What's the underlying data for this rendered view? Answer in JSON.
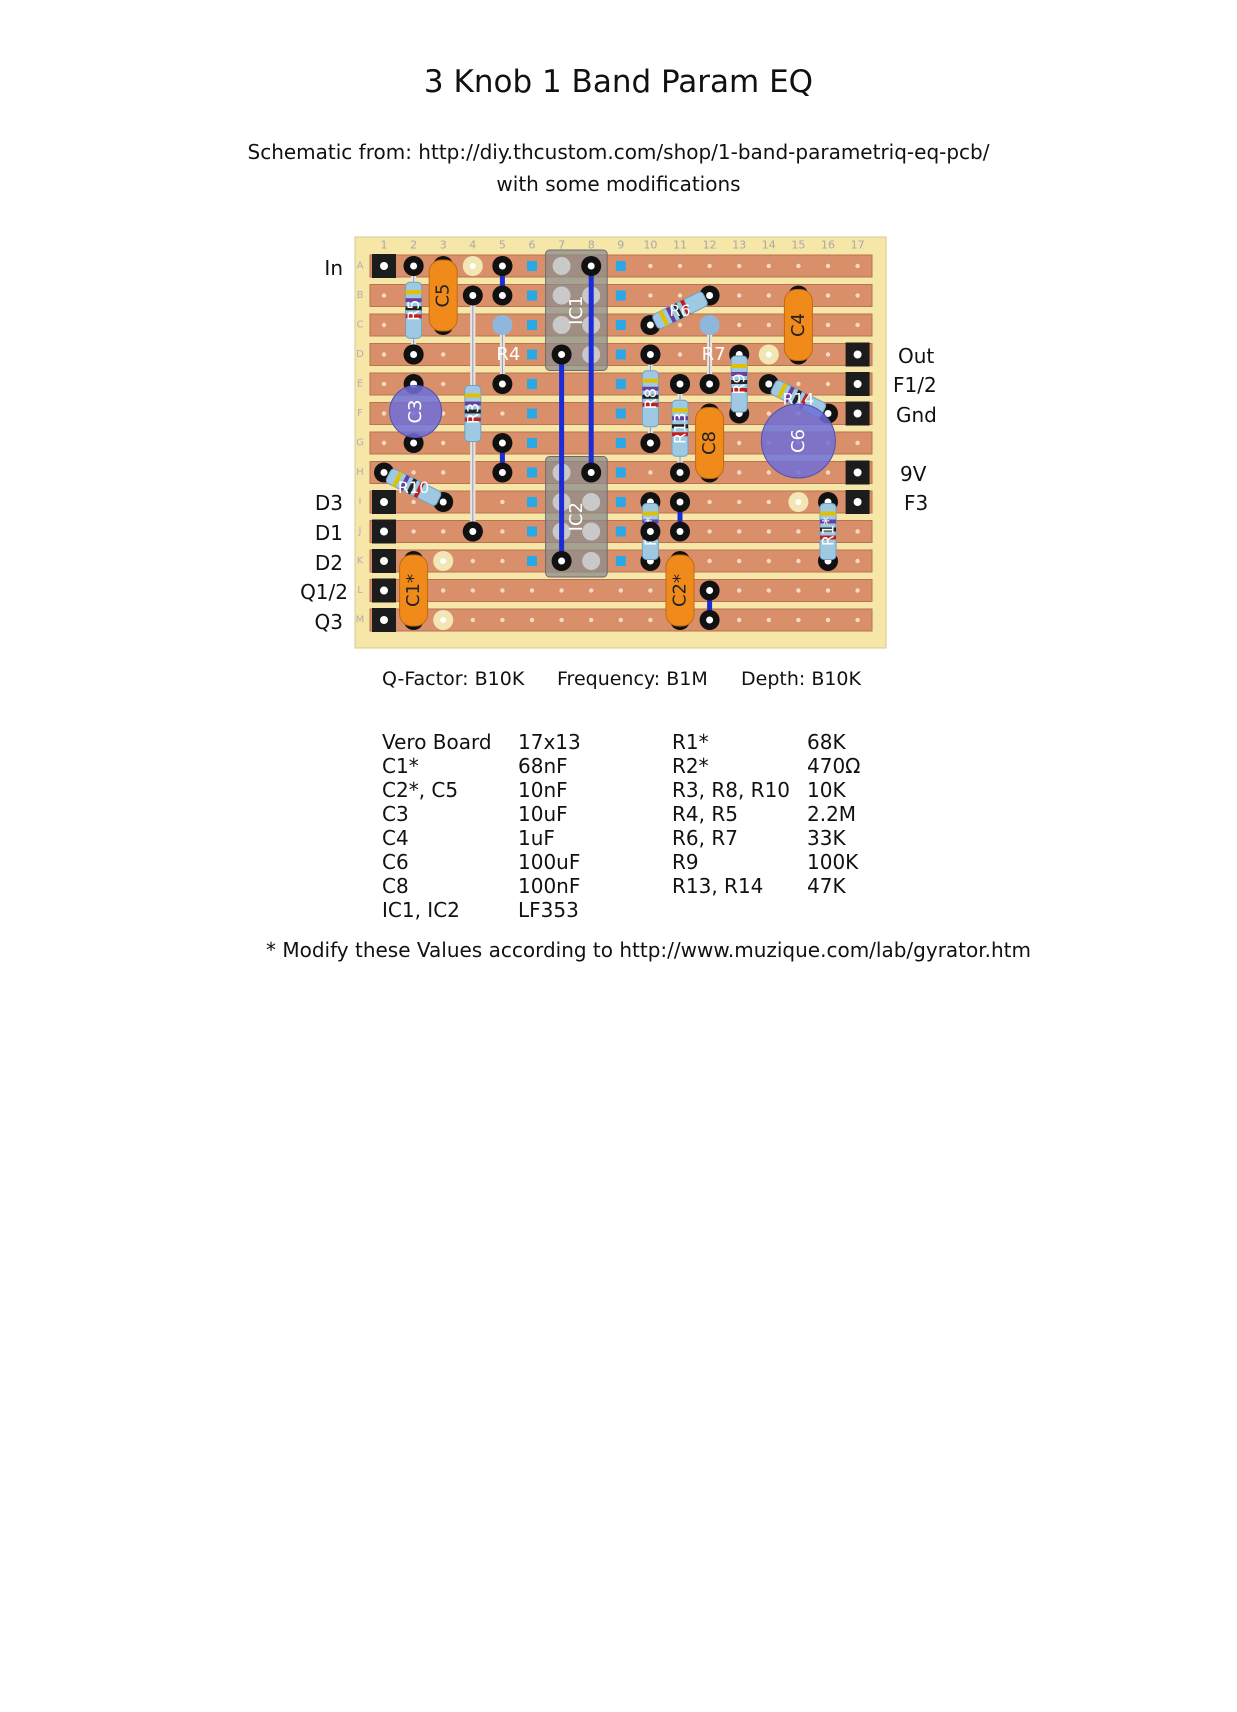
{
  "title": "3 Knob 1 Band Param EQ",
  "subtitle": {
    "line1": "Schematic from: http://diy.thcustom.com/shop/1-band-parametriq-eq-pcb/",
    "line2": "with some modifications"
  },
  "board": {
    "columns": [
      "1",
      "2",
      "3",
      "4",
      "5",
      "6",
      "7",
      "8",
      "9",
      "10",
      "11",
      "12",
      "13",
      "14",
      "15",
      "16",
      "17"
    ],
    "rows": [
      "A",
      "B",
      "C",
      "D",
      "E",
      "F",
      "G",
      "H",
      "I",
      "J",
      "K",
      "L",
      "M"
    ],
    "colors": {
      "board": "#f6e6a8",
      "strip": "#d9906a",
      "wire": "#1b2cd6",
      "capacitor": "#f08a1a",
      "electrolytic": "#6f6fd8",
      "resistor": "#9fc9e3",
      "ic": "#8c8c8c"
    },
    "components": [
      {
        "id": "C1*",
        "kind": "cap"
      },
      {
        "id": "C2*",
        "kind": "cap"
      },
      {
        "id": "C3",
        "kind": "electrolytic"
      },
      {
        "id": "C4",
        "kind": "cap"
      },
      {
        "id": "C5",
        "kind": "cap"
      },
      {
        "id": "C6",
        "kind": "electrolytic"
      },
      {
        "id": "C8",
        "kind": "cap"
      },
      {
        "id": "IC1",
        "kind": "ic"
      },
      {
        "id": "IC2",
        "kind": "ic"
      },
      {
        "id": "R1*",
        "kind": "resistor"
      },
      {
        "id": "R2*",
        "kind": "resistor"
      },
      {
        "id": "R3",
        "kind": "resistor"
      },
      {
        "id": "R4",
        "kind": "resistor"
      },
      {
        "id": "R5",
        "kind": "resistor"
      },
      {
        "id": "R6",
        "kind": "resistor"
      },
      {
        "id": "R7",
        "kind": "resistor"
      },
      {
        "id": "R8",
        "kind": "resistor"
      },
      {
        "id": "R9",
        "kind": "resistor"
      },
      {
        "id": "R10",
        "kind": "resistor"
      },
      {
        "id": "R13",
        "kind": "resistor"
      },
      {
        "id": "R14",
        "kind": "resistor"
      }
    ]
  },
  "left_labels": {
    "in": "In",
    "d3": "D3",
    "d1": "D1",
    "d2": "D2",
    "q12": "Q1/2",
    "q3": "Q3"
  },
  "right_labels": {
    "out": "Out",
    "f12": "F1/2",
    "gnd": "Gnd",
    "v9": "9V",
    "f3": "F3"
  },
  "pots": [
    {
      "label": "Q-Factor: B10K"
    },
    {
      "label": "Frequency: B1M"
    },
    {
      "label": "Depth: B10K"
    }
  ],
  "bom_left": [
    {
      "part": "Vero Board",
      "value": "17x13"
    },
    {
      "part": "C1*",
      "value": "68nF"
    },
    {
      "part": "C2*, C5",
      "value": "10nF"
    },
    {
      "part": "C3",
      "value": "10uF"
    },
    {
      "part": "C4",
      "value": "1uF"
    },
    {
      "part": "C6",
      "value": "100uF"
    },
    {
      "part": "C8",
      "value": "100nF"
    },
    {
      "part": "IC1, IC2",
      "value": "LF353"
    }
  ],
  "bom_right": [
    {
      "part": "R1*",
      "value": "68K"
    },
    {
      "part": "R2*",
      "value": "470Ω"
    },
    {
      "part": "R3, R8, R10",
      "value": "10K"
    },
    {
      "part": "R4, R5",
      "value": "2.2M"
    },
    {
      "part": "R6, R7",
      "value": "33K"
    },
    {
      "part": "R9",
      "value": "100K"
    },
    {
      "part": "R13, R14",
      "value": "47K"
    }
  ],
  "footnote": "* Modify these Values according to http://www.muzique.com/lab/gyrator.htm"
}
